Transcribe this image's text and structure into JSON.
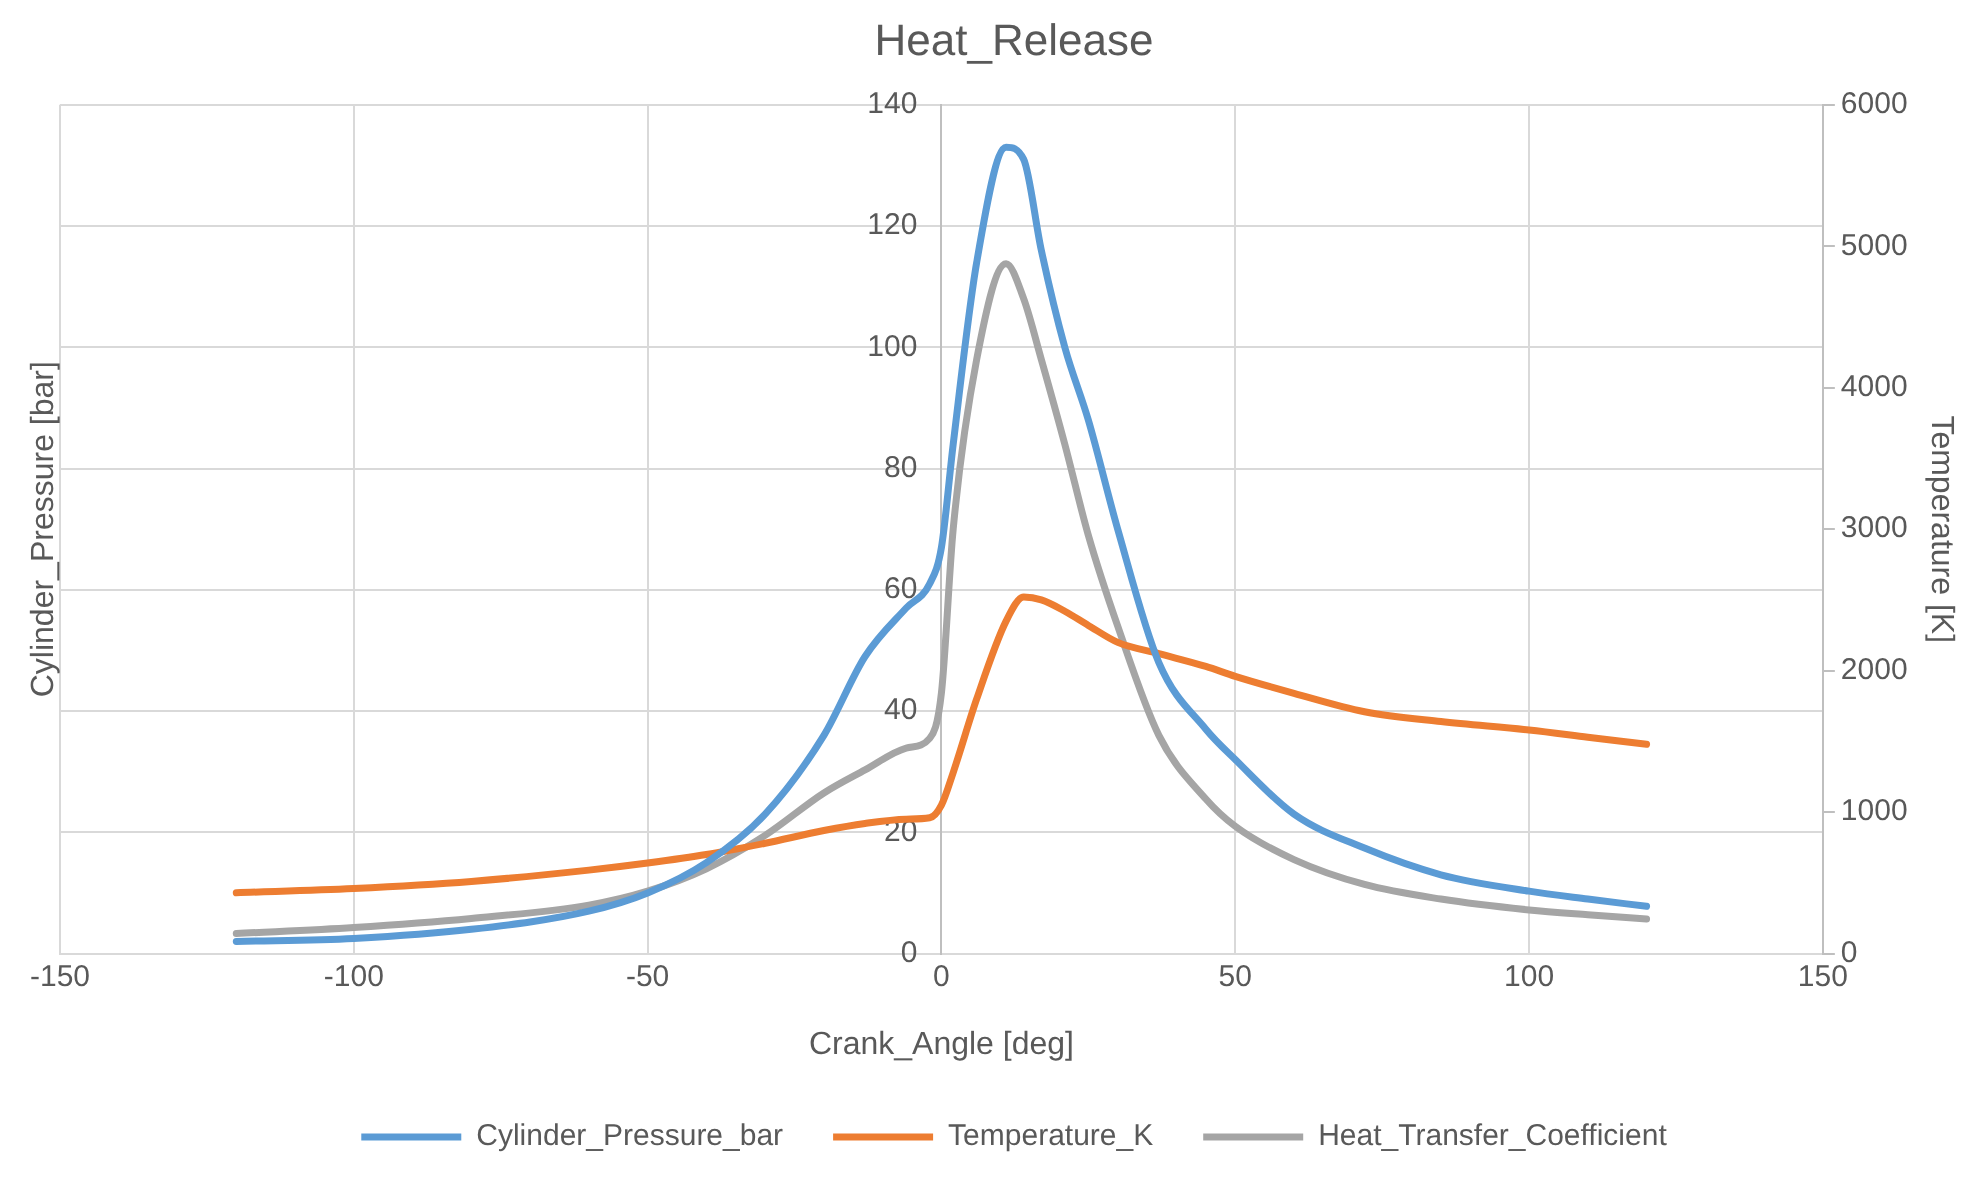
{
  "chart_data": {
    "type": "line",
    "title": "Heat_Release",
    "xlabel": "Crank_Angle [deg]",
    "ylabel": "Cylinder_Pressure [bar]",
    "y2label": "Temperature [K]",
    "x": [
      -120,
      -100,
      -80,
      -60,
      -50,
      -40,
      -30,
      -20,
      -13,
      -6,
      -2,
      0,
      2,
      6,
      11,
      14,
      17,
      21,
      25,
      30,
      37,
      45,
      50,
      60,
      72,
      85,
      100,
      110,
      120
    ],
    "series": [
      {
        "name": "Cylinder_Pressure_bar",
        "color": "#5b9bd5",
        "values": [
          2,
          2.5,
          4,
          7,
          10,
          15,
          23,
          36,
          49,
          57,
          61,
          67,
          84,
          114,
          133,
          131,
          116,
          100,
          88,
          70,
          48,
          37,
          32,
          23,
          17.4,
          13,
          10.3,
          9,
          7.8
        ]
      },
      {
        "name": "Temperature_K",
        "color": "#ed7d31",
        "axis": "y2",
        "values": [
          430,
          460,
          510,
          590,
          640,
          700,
          780,
          870,
          920,
          950,
          960,
          1050,
          1280,
          1800,
          2350,
          2520,
          2500,
          2420,
          2320,
          2200,
          2120,
          2030,
          1960,
          1840,
          1710,
          1640,
          1580,
          1530,
          1480
        ]
      },
      {
        "name": "Heat_Transfer_Coefficient",
        "color": "#a5a5a5",
        "values": [
          3.3,
          4.3,
          5.8,
          8,
          10.3,
          14,
          19.5,
          26.5,
          30.3,
          33.9,
          35.5,
          43,
          70,
          98,
          113.8,
          108,
          98,
          84,
          69,
          54,
          36,
          25.5,
          21,
          15.5,
          11.4,
          9,
          7.2,
          6.4,
          5.7
        ]
      }
    ],
    "xlim": [
      -150,
      150
    ],
    "xticks": [
      -150,
      -100,
      -50,
      0,
      50,
      100,
      150
    ],
    "ylim": [
      0,
      140
    ],
    "yticks": [
      0,
      20,
      40,
      60,
      80,
      100,
      120,
      140
    ],
    "y2lim": [
      0,
      6000
    ],
    "y2ticks": [
      0,
      1000,
      2000,
      3000,
      4000,
      5000,
      6000
    ],
    "grid": true,
    "legend": "bottom",
    "marker": "none",
    "line_style": "solid"
  }
}
